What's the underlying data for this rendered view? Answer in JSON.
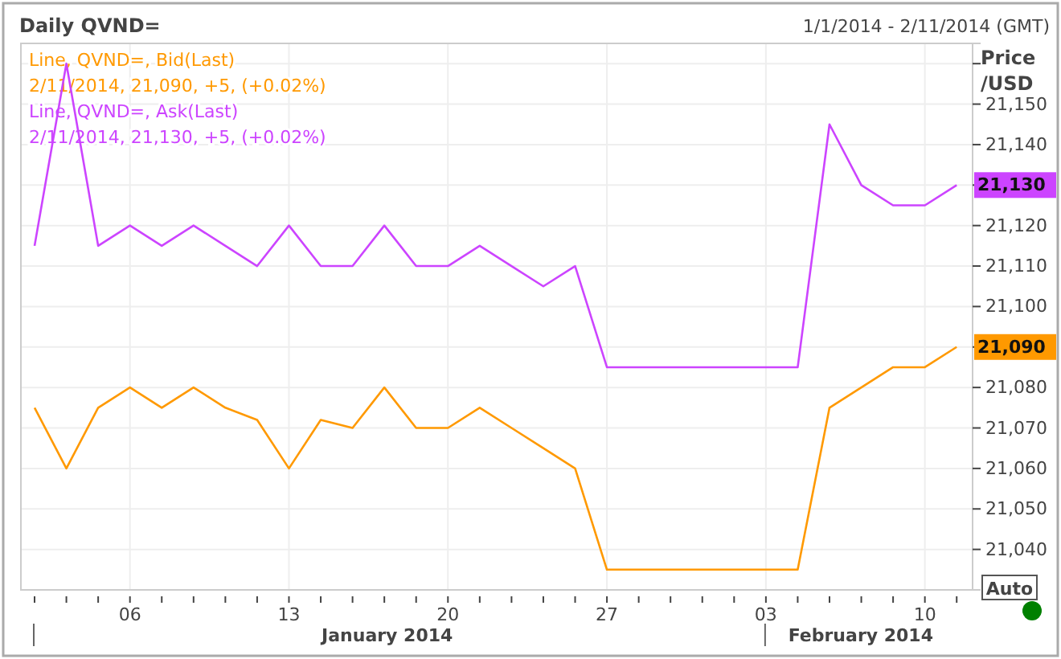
{
  "chart_data": {
    "type": "line",
    "title": "Daily QVND=",
    "subtitle": "1/1/2014 - 2/11/2014 (GMT)",
    "ylabel": "Price /USD",
    "categories": [
      null,
      null,
      null,
      "06",
      null,
      null,
      null,
      null,
      "13",
      null,
      null,
      null,
      null,
      "20",
      null,
      null,
      null,
      null,
      "27",
      null,
      null,
      null,
      null,
      "03",
      null,
      null,
      null,
      null,
      "10",
      null
    ],
    "series": [
      {
        "name": "Line, QVND=, Bid(Last)",
        "color": "#ff9900",
        "values": [
          21075,
          21060,
          21075,
          21080,
          21075,
          21080,
          21075,
          21072,
          21060,
          21072,
          21070,
          21080,
          21070,
          21070,
          21075,
          21070,
          21065,
          21060,
          21035,
          21035,
          21035,
          21035,
          21035,
          21035,
          21035,
          21075,
          21080,
          21085,
          21085,
          21090
        ]
      },
      {
        "name": "Line, QVND=, Ask(Last)",
        "color": "#cc44ff",
        "values": [
          21115,
          21160,
          21115,
          21120,
          21115,
          21120,
          21115,
          21110,
          21120,
          21110,
          21110,
          21120,
          21110,
          21110,
          21115,
          21110,
          21105,
          21110,
          21085,
          21085,
          21085,
          21085,
          21085,
          21085,
          21085,
          21145,
          21130,
          21125,
          21125,
          21130
        ]
      }
    ],
    "annotations": [
      "2/11/2014, 21,090, +5, (+0.02%)",
      "2/11/2014, 21,130, +5, (+0.02%)",
      "January 2014",
      "February 2014",
      "Auto"
    ],
    "ylim": [
      21030,
      21165
    ],
    "yticks": [
      {
        "value": 21040,
        "label": "21,040"
      },
      {
        "value": 21050,
        "label": "21,050"
      },
      {
        "value": 21060,
        "label": "21,060"
      },
      {
        "value": 21070,
        "label": "21,070"
      },
      {
        "value": 21080,
        "label": "21,080"
      },
      {
        "value": 21090,
        "label": "21,090"
      },
      {
        "value": 21100,
        "label": "21,100"
      },
      {
        "value": 21110,
        "label": "21,110"
      },
      {
        "value": 21120,
        "label": "21,120"
      },
      {
        "value": 21130,
        "label": "21,130"
      },
      {
        "value": 21140,
        "label": "21,140"
      },
      {
        "value": 21150,
        "label": "21,150"
      },
      {
        "value": 21160,
        "label": null
      }
    ],
    "grid": true,
    "legend": "top left",
    "line_style": "solid",
    "marker": "none"
  }
}
